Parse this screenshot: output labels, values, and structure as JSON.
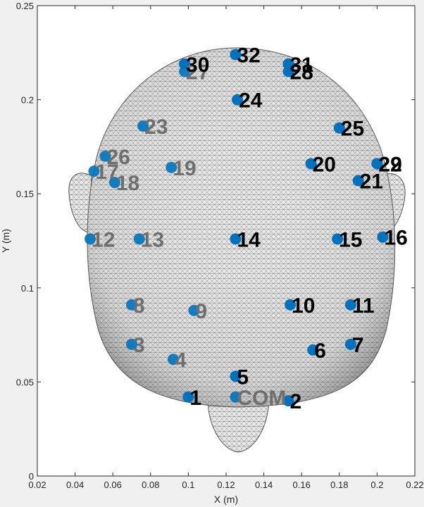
{
  "chart_data": {
    "type": "scatter",
    "title": "",
    "xlabel": "X (m)",
    "ylabel": "Y (m)",
    "xlim": [
      0.02,
      0.22
    ],
    "ylim": [
      0,
      0.25
    ],
    "grid": false,
    "xticks": [
      0.02,
      0.04,
      0.06,
      0.08,
      0.1,
      0.12,
      0.14,
      0.16,
      0.18,
      0.2,
      0.22
    ],
    "xtick_labels": [
      "0.02",
      "0.04",
      "0.06",
      "0.08",
      "0.1",
      "0.12",
      "0.14",
      "0.16",
      "0.18",
      "0.2",
      "0.22"
    ],
    "yticks": [
      0,
      0.05,
      0.1,
      0.15,
      0.2,
      0.25
    ],
    "ytick_labels": [
      "0",
      "0.05",
      "0.1",
      "0.15",
      "0.2",
      "0.25"
    ],
    "marker_color": "#0072bd",
    "mesh_color": "#555555",
    "label_color_front": "#000000",
    "label_color_back": "#6e6e6e",
    "points": [
      {
        "label": "1",
        "x": 0.1,
        "y": 0.042,
        "depth": "front"
      },
      {
        "label": "2",
        "x": 0.153,
        "y": 0.04,
        "depth": "front"
      },
      {
        "label": "3",
        "x": 0.07,
        "y": 0.07,
        "depth": "back"
      },
      {
        "label": "4",
        "x": 0.092,
        "y": 0.062,
        "depth": "back"
      },
      {
        "label": "5",
        "x": 0.125,
        "y": 0.053,
        "depth": "front"
      },
      {
        "label": "6",
        "x": 0.166,
        "y": 0.067,
        "depth": "front"
      },
      {
        "label": "7",
        "x": 0.186,
        "y": 0.07,
        "depth": "front"
      },
      {
        "label": "8",
        "x": 0.07,
        "y": 0.091,
        "depth": "back"
      },
      {
        "label": "9",
        "x": 0.103,
        "y": 0.088,
        "depth": "back"
      },
      {
        "label": "10",
        "x": 0.154,
        "y": 0.091,
        "depth": "front"
      },
      {
        "label": "11",
        "x": 0.186,
        "y": 0.091,
        "depth": "front"
      },
      {
        "label": "12",
        "x": 0.048,
        "y": 0.126,
        "depth": "back"
      },
      {
        "label": "13",
        "x": 0.074,
        "y": 0.126,
        "depth": "back"
      },
      {
        "label": "14",
        "x": 0.125,
        "y": 0.126,
        "depth": "front"
      },
      {
        "label": "15",
        "x": 0.179,
        "y": 0.126,
        "depth": "front"
      },
      {
        "label": "16",
        "x": 0.203,
        "y": 0.127,
        "depth": "front"
      },
      {
        "label": "17",
        "x": 0.05,
        "y": 0.162,
        "depth": "back"
      },
      {
        "label": "18",
        "x": 0.061,
        "y": 0.156,
        "depth": "back"
      },
      {
        "label": "19",
        "x": 0.091,
        "y": 0.164,
        "depth": "back"
      },
      {
        "label": "20",
        "x": 0.165,
        "y": 0.166,
        "depth": "front"
      },
      {
        "label": "21",
        "x": 0.19,
        "y": 0.157,
        "depth": "front"
      },
      {
        "label": "22",
        "x": 0.2,
        "y": 0.166,
        "depth": "front"
      },
      {
        "label": "23",
        "x": 0.076,
        "y": 0.186,
        "depth": "back"
      },
      {
        "label": "24",
        "x": 0.126,
        "y": 0.2,
        "depth": "front"
      },
      {
        "label": "25",
        "x": 0.18,
        "y": 0.185,
        "depth": "front"
      },
      {
        "label": "26",
        "x": 0.056,
        "y": 0.17,
        "depth": "back"
      },
      {
        "label": "27",
        "x": 0.098,
        "y": 0.215,
        "depth": "back"
      },
      {
        "label": "28",
        "x": 0.153,
        "y": 0.215,
        "depth": "front"
      },
      {
        "label": "29",
        "x": 0.2,
        "y": 0.166,
        "depth": "front"
      },
      {
        "label": "30",
        "x": 0.098,
        "y": 0.219,
        "depth": "front"
      },
      {
        "label": "31",
        "x": 0.153,
        "y": 0.219,
        "depth": "front"
      },
      {
        "label": "32",
        "x": 0.125,
        "y": 0.224,
        "depth": "front"
      },
      {
        "label": "COM",
        "x": 0.125,
        "y": 0.042,
        "depth": "back"
      }
    ]
  }
}
